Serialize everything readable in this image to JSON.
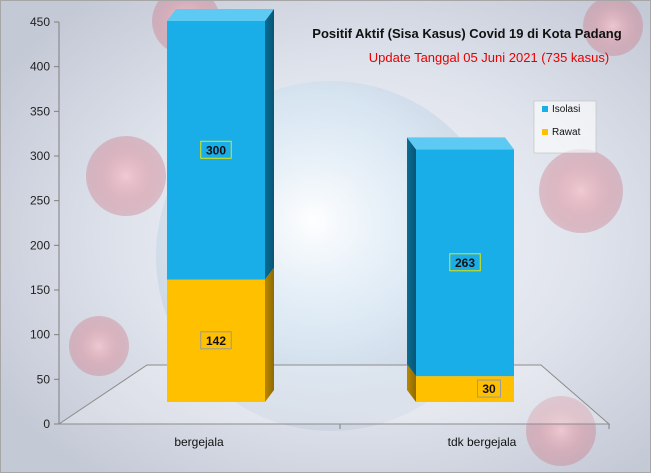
{
  "chart_data": {
    "type": "bar",
    "stacked": true,
    "three_d": true,
    "title": "Positif Aktif  (Sisa Kasus) Covid 19 di Kota Padang",
    "subtitle": "Update Tanggal  05 Juni 2021 (735 kasus)",
    "categories": [
      "bergejala",
      "tdk bergejala"
    ],
    "series": [
      {
        "name": "Isolasi",
        "values": [
          300,
          263
        ],
        "color": "#1aaee8"
      },
      {
        "name": "Rawat",
        "values": [
          142,
          30
        ],
        "color": "#ffc000"
      }
    ],
    "stack_order": [
      "Rawat",
      "Isolasi"
    ],
    "data_labels": [
      {
        "series": "Isolasi",
        "labels": [
          "300",
          "263"
        ]
      },
      {
        "series": "Rawat",
        "labels": [
          "142",
          "30"
        ]
      }
    ],
    "ylim": [
      0,
      450
    ],
    "yticks": [
      0,
      50,
      100,
      150,
      200,
      250,
      300,
      350,
      400,
      450
    ],
    "xlabel": "",
    "ylabel": "",
    "grid": false,
    "legend_position": "right",
    "subtitle_color": "#e60000",
    "background": "covid virus photo"
  }
}
